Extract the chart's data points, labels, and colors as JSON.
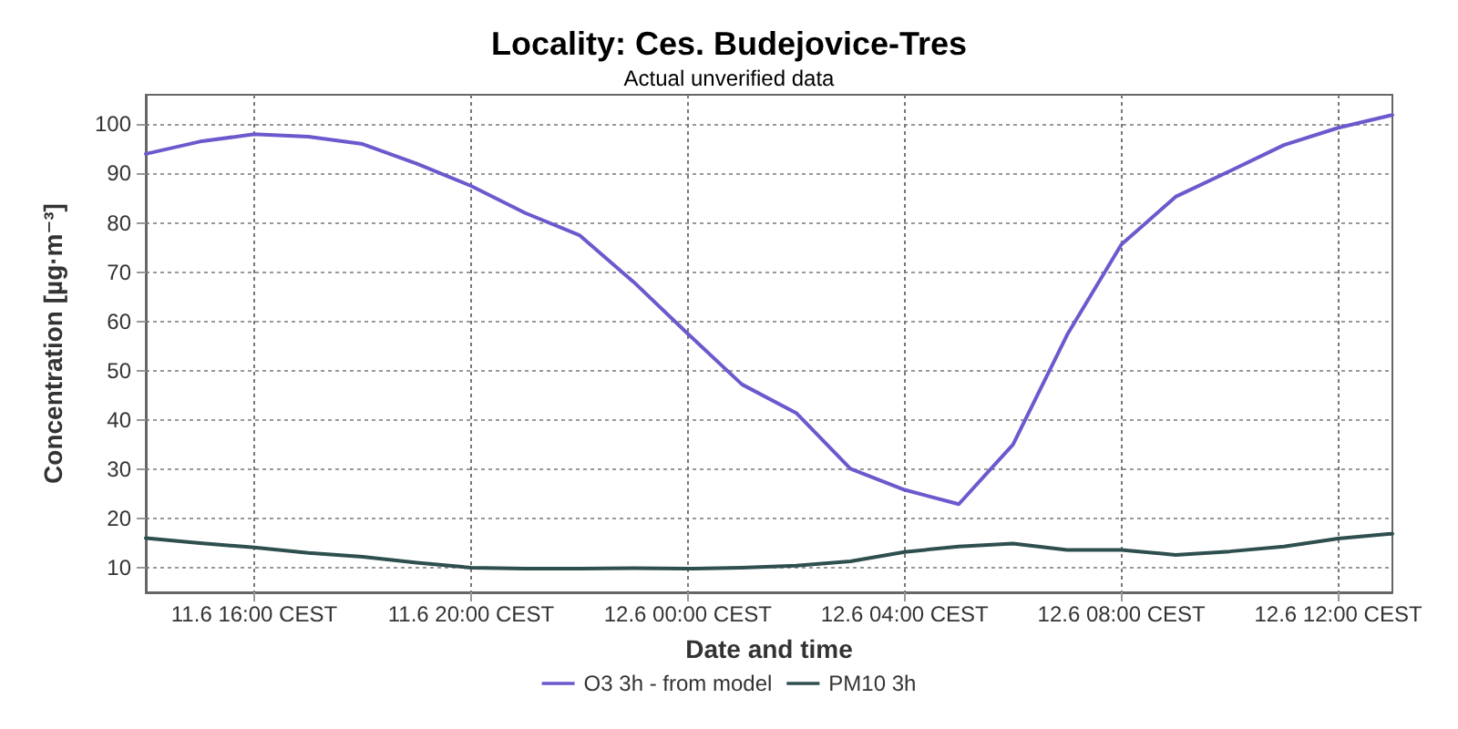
{
  "chart_data": {
    "type": "line",
    "title": "Locality: Ces. Budejovice-Tres",
    "subtitle": "Actual unverified data",
    "xlabel": "Date and time",
    "ylabel": "Concentration [µg·m⁻³]",
    "categories": [
      null,
      null,
      "11.6 16:00 CEST",
      null,
      null,
      null,
      "11.6 20:00 CEST",
      null,
      null,
      null,
      "12.6 00:00 CEST",
      null,
      null,
      null,
      "12.6 04:00 CEST",
      null,
      null,
      null,
      "12.6 08:00 CEST",
      null,
      null,
      null,
      "12.6 12:00 CEST",
      null
    ],
    "series": [
      {
        "name": "O3 3h - from model",
        "color": "#6a5acd",
        "values": [
          94,
          96.5,
          98,
          97.5,
          96,
          92,
          87.5,
          82,
          77.5,
          68,
          57.5,
          47.2,
          41.4,
          30.1,
          25.8,
          22.9,
          35,
          57.3,
          75.6,
          85.3,
          90.5,
          95.8,
          99.3,
          101.9
        ]
      },
      {
        "name": "PM10 3h",
        "color": "#2f4f4f",
        "values": [
          16,
          15,
          14.1,
          13,
          12.2,
          11,
          10,
          9.8,
          9.8,
          9.9,
          9.8,
          10,
          10.4,
          11.3,
          13.2,
          14.3,
          14.9,
          13.6,
          13.6,
          12.6,
          13.3,
          14.3,
          15.9,
          16.9
        ]
      }
    ],
    "ylim": [
      5,
      106
    ],
    "yticks": [
      10,
      20,
      30,
      40,
      50,
      60,
      70,
      80,
      90,
      100
    ],
    "grid": true,
    "legend": "bottom",
    "marker": "none",
    "line_style": "solid"
  }
}
